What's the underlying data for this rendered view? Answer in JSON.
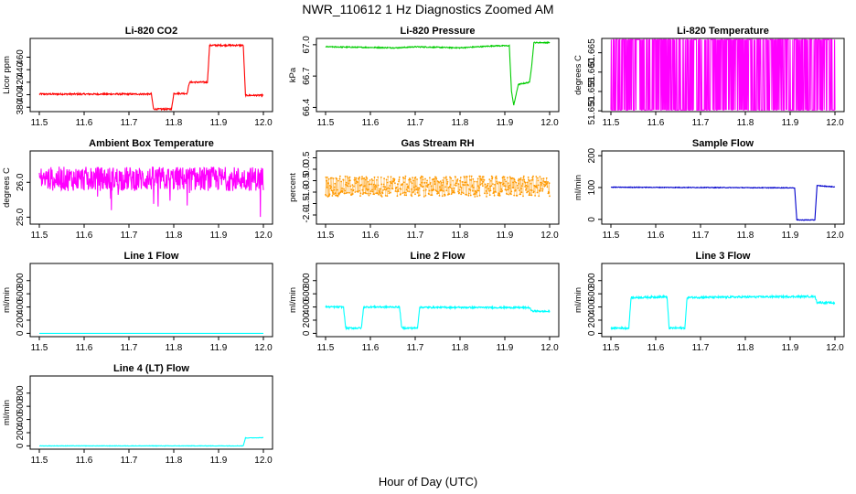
{
  "figure": {
    "title": "NWR_110612  1 Hz Diagnostics Zoomed AM",
    "xlabel": "Hour of Day (UTC)"
  },
  "chart_data": [
    {
      "type": "line",
      "title": "Li-820 CO2",
      "ylabel": "Licor ppm",
      "color": "#ff0000",
      "xlim": [
        11.5,
        12.0
      ],
      "ylim": [
        373,
        490
      ],
      "xticks": [
        "11.5",
        "11.6",
        "11.7",
        "11.8",
        "11.9",
        "12.0"
      ],
      "yticks": [
        "380",
        "400",
        "420",
        "440",
        "460"
      ],
      "series": [
        {
          "x": [
            11.5,
            11.75,
            11.755,
            11.795,
            11.8,
            11.83,
            11.835,
            11.875,
            11.88,
            11.955,
            11.96,
            12.0
          ],
          "y": [
            401,
            401,
            377,
            377,
            402,
            402,
            420,
            420,
            479,
            479,
            399,
            399
          ]
        }
      ],
      "noise": 1.2
    },
    {
      "type": "line",
      "title": "Li-820 Pressure",
      "ylabel": "kPa",
      "color": "#00cc00",
      "xlim": [
        11.5,
        12.0
      ],
      "ylim": [
        66.36,
        67.06
      ],
      "xticks": [
        "11.5",
        "11.6",
        "11.7",
        "11.8",
        "11.9",
        "12.0"
      ],
      "yticks": [
        "66.4",
        "66.7",
        "67.0"
      ],
      "series": [
        {
          "x": [
            11.5,
            11.66,
            11.7,
            11.8,
            11.88,
            11.91,
            11.915,
            11.92,
            11.93,
            11.955,
            11.96,
            11.965,
            12.0
          ],
          "y": [
            66.98,
            66.97,
            66.98,
            66.97,
            66.99,
            66.99,
            66.55,
            66.42,
            66.62,
            66.64,
            66.8,
            67.02,
            67.02
          ]
        }
      ],
      "noise": 0.005
    },
    {
      "type": "line",
      "title": "Li-820 Temperature",
      "ylabel": "degrees C",
      "color": "#ff00ff",
      "xlim": [
        11.5,
        12.0
      ],
      "ylim": [
        51.6498,
        51.6687
      ],
      "xticks": [
        "11.5",
        "11.6",
        "11.7",
        "11.8",
        "11.9",
        "12.0"
      ],
      "yticks": [
        "51.650",
        "51.655",
        "51.660",
        "51.665"
      ],
      "series": [
        {
          "x": [
            11.5,
            12.0
          ],
          "y": [
            51.65,
            51.668
          ]
        }
      ],
      "style": "toggle",
      "low": 51.6502,
      "high": 51.6684
    },
    {
      "type": "line",
      "title": "Ambient Box Temperature",
      "ylabel": "degrees C",
      "color": "#ff00ff",
      "xlim": [
        11.5,
        12.0
      ],
      "ylim": [
        24.8,
        26.9
      ],
      "xticks": [
        "11.5",
        "11.6",
        "11.7",
        "11.8",
        "11.9",
        "12.0"
      ],
      "yticks": [
        "25.0",
        "26.0"
      ],
      "series": [
        {
          "x": [
            11.5,
            12.0
          ],
          "y": [
            26.1,
            26.1
          ]
        }
      ],
      "noise": 0.35,
      "spikes_down": 0.9
    },
    {
      "type": "scatter",
      "title": "Gas Stream RH",
      "ylabel": "percent",
      "color": "#ff9900",
      "xlim": [
        11.5,
        12.0
      ],
      "ylim": [
        -2.4,
        0.8
      ],
      "xticks": [
        "11.5",
        "11.6",
        "11.7",
        "11.8",
        "11.9",
        "12.0"
      ],
      "yticks": [
        "-2.0",
        "-1.5",
        "-1.0",
        "-0.5",
        "0.0",
        "0.5"
      ],
      "series": [
        {
          "x": [
            11.5,
            12.0
          ],
          "y": [
            -0.75,
            -0.75
          ]
        }
      ],
      "noise": 0.45
    },
    {
      "type": "line",
      "title": "Sample Flow",
      "ylabel": "ml/min",
      "color": "#0000cc",
      "xlim": [
        11.5,
        12.0
      ],
      "ylim": [
        -15,
        215
      ],
      "xticks": [
        "11.5",
        "11.6",
        "11.7",
        "11.8",
        "11.9",
        "12.0"
      ],
      "yticks": [
        "0",
        "100",
        "200"
      ],
      "series": [
        {
          "x": [
            11.5,
            11.91,
            11.915,
            11.955,
            11.96,
            12.0
          ],
          "y": [
            101,
            99,
            -2,
            -2,
            106,
            102
          ]
        }
      ],
      "noise": 1.0
    },
    {
      "type": "line",
      "title": "Line 1 Flow",
      "ylabel": "ml/min",
      "color": "#00ffff",
      "xlim": [
        11.5,
        12.0
      ],
      "ylim": [
        -50,
        1060
      ],
      "xticks": [
        "11.5",
        "11.6",
        "11.7",
        "11.8",
        "11.9",
        "12.0"
      ],
      "yticks": [
        "0",
        "200",
        "400",
        "600",
        "800"
      ],
      "series": [
        {
          "x": [
            11.5,
            12.0
          ],
          "y": [
            0,
            0
          ]
        }
      ],
      "noise": 0
    },
    {
      "type": "line",
      "title": "Line 2 Flow",
      "ylabel": "ml/min",
      "color": "#00ffff",
      "xlim": [
        11.5,
        12.0
      ],
      "ylim": [
        -50,
        1060
      ],
      "xticks": [
        "11.5",
        "11.6",
        "11.7",
        "11.8",
        "11.9",
        "12.0"
      ],
      "yticks": [
        "0",
        "200",
        "400",
        "600",
        "800"
      ],
      "series": [
        {
          "x": [
            11.5,
            11.54,
            11.545,
            11.58,
            11.585,
            11.665,
            11.67,
            11.705,
            11.71,
            11.955,
            11.96,
            12.0
          ],
          "y": [
            400,
            400,
            80,
            80,
            400,
            400,
            80,
            80,
            395,
            390,
            340,
            330
          ]
        }
      ],
      "noise": 12
    },
    {
      "type": "line",
      "title": "Line 3 Flow",
      "ylabel": "ml/min",
      "color": "#00ffff",
      "xlim": [
        11.5,
        12.0
      ],
      "ylim": [
        -50,
        1060
      ],
      "xticks": [
        "11.5",
        "11.6",
        "11.7",
        "11.8",
        "11.9",
        "12.0"
      ],
      "yticks": [
        "0",
        "200",
        "400",
        "600",
        "800"
      ],
      "series": [
        {
          "x": [
            11.5,
            11.54,
            11.545,
            11.625,
            11.63,
            11.665,
            11.67,
            11.955,
            11.96,
            12.0
          ],
          "y": [
            80,
            80,
            540,
            555,
            80,
            80,
            545,
            560,
            470,
            460
          ]
        }
      ],
      "noise": 14
    },
    {
      "type": "line",
      "title": "Line 4 (LT) Flow",
      "ylabel": "ml/min",
      "color": "#00ffff",
      "xlim": [
        11.5,
        12.0
      ],
      "ylim": [
        -50,
        1060
      ],
      "xticks": [
        "11.5",
        "11.6",
        "11.7",
        "11.8",
        "11.9",
        "12.0"
      ],
      "yticks": [
        "0",
        "200",
        "400",
        "600",
        "800"
      ],
      "series": [
        {
          "x": [
            11.5,
            11.955,
            11.96,
            12.0
          ],
          "y": [
            0,
            0,
            120,
            125
          ]
        }
      ],
      "noise": 3
    }
  ]
}
